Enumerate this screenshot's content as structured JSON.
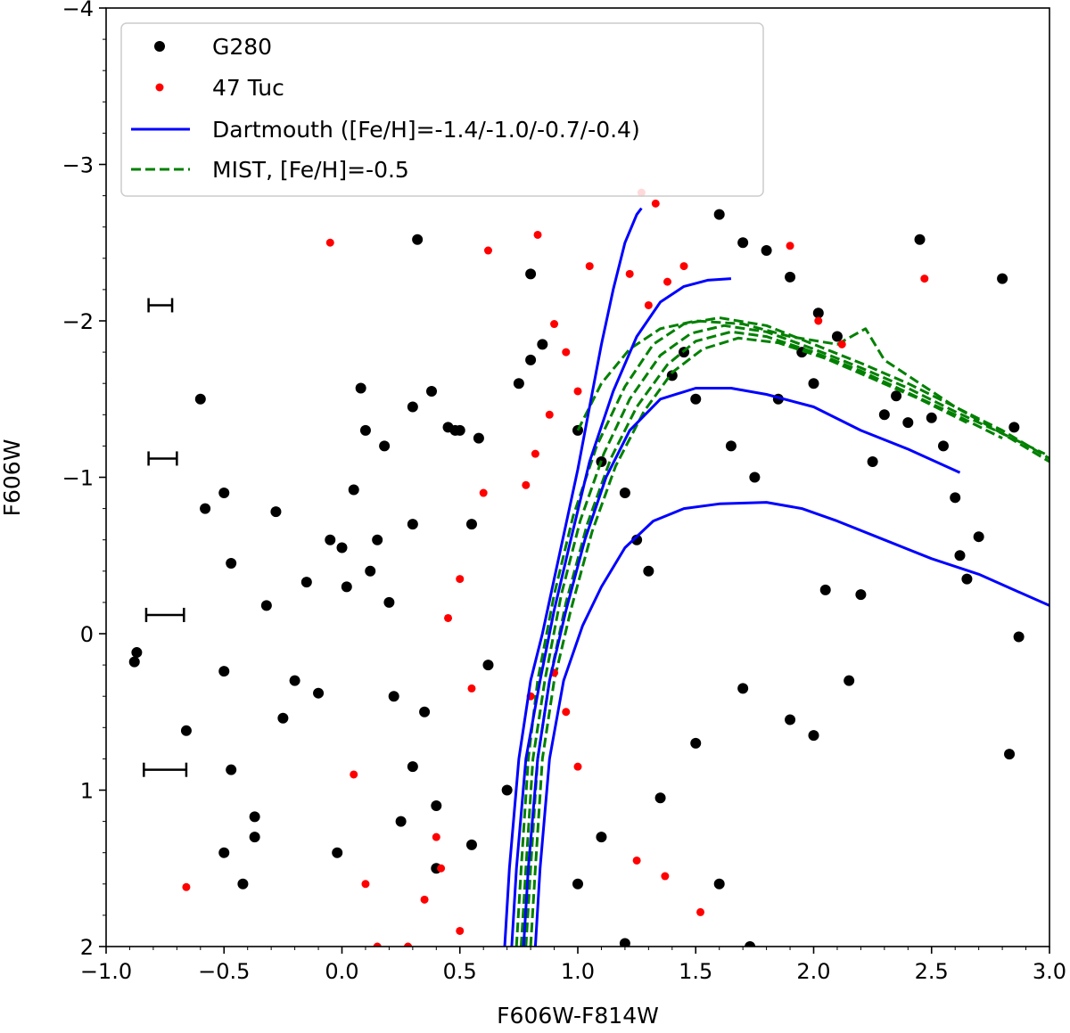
{
  "chart_data": {
    "type": "scatter",
    "xlabel": "F606W-F814W",
    "ylabel": "F606W",
    "xlim": [
      -1.0,
      3.0
    ],
    "ylim": [
      2,
      -4
    ],
    "y_inverted": true,
    "x_ticks": [
      -1.0,
      -0.5,
      0.0,
      0.5,
      1.0,
      1.5,
      2.0,
      2.5,
      3.0
    ],
    "x_tick_labels": [
      "−1.0",
      "−0.5",
      "0.0",
      "0.5",
      "1.0",
      "1.5",
      "2.0",
      "2.5",
      "3.0"
    ],
    "y_ticks": [
      -4,
      -3,
      -2,
      -1,
      0,
      1,
      2
    ],
    "y_tick_labels": [
      "−4",
      "−3",
      "−2",
      "−1",
      "0",
      "1",
      "2"
    ],
    "legend": {
      "position": "upper-left",
      "entries": [
        {
          "label": "G280",
          "kind": "marker",
          "color": "#000000"
        },
        {
          "label": "47 Tuc",
          "kind": "marker",
          "color": "#ff0000"
        },
        {
          "label": "Dartmouth ([Fe/H]=-1.4/-1.0/-0.7/-0.4)",
          "kind": "line",
          "color": "#0000ff"
        },
        {
          "label": "MIST, [Fe/H]=-0.5",
          "kind": "dashed",
          "color": "#008000"
        }
      ]
    },
    "error_bars": [
      {
        "x": -0.77,
        "y": -2.1,
        "xerr": 0.05
      },
      {
        "x": -0.76,
        "y": -1.12,
        "xerr": 0.06
      },
      {
        "x": -0.75,
        "y": -0.12,
        "xerr": 0.08
      },
      {
        "x": -0.75,
        "y": 0.87,
        "xerr": 0.09
      }
    ],
    "series": [
      {
        "name": "G280",
        "color": "#000000",
        "style": "points",
        "points": [
          [
            -0.88,
            0.18
          ],
          [
            -0.87,
            0.12
          ],
          [
            -0.66,
            0.62
          ],
          [
            -0.6,
            -1.5
          ],
          [
            -0.58,
            -0.8
          ],
          [
            -0.5,
            -0.9
          ],
          [
            -0.5,
            0.24
          ],
          [
            -0.5,
            1.4
          ],
          [
            -0.47,
            -0.45
          ],
          [
            -0.47,
            0.87
          ],
          [
            -0.42,
            1.6
          ],
          [
            -0.37,
            1.17
          ],
          [
            -0.37,
            1.3
          ],
          [
            -0.32,
            -0.18
          ],
          [
            -0.28,
            -0.78
          ],
          [
            -0.25,
            0.54
          ],
          [
            -0.2,
            0.3
          ],
          [
            -0.15,
            -0.33
          ],
          [
            -0.1,
            0.38
          ],
          [
            -0.05,
            -0.6
          ],
          [
            -0.02,
            1.4
          ],
          [
            0.0,
            -0.55
          ],
          [
            0.02,
            -0.3
          ],
          [
            0.05,
            -0.92
          ],
          [
            0.08,
            -1.57
          ],
          [
            0.1,
            -1.3
          ],
          [
            0.12,
            -0.4
          ],
          [
            0.15,
            -0.6
          ],
          [
            0.18,
            -1.2
          ],
          [
            0.2,
            -0.2
          ],
          [
            0.22,
            0.4
          ],
          [
            0.25,
            1.2
          ],
          [
            0.3,
            -1.45
          ],
          [
            0.3,
            -0.7
          ],
          [
            0.32,
            -2.52
          ],
          [
            0.35,
            0.5
          ],
          [
            0.38,
            -1.55
          ],
          [
            0.4,
            1.5
          ],
          [
            0.45,
            -1.32
          ],
          [
            0.48,
            -1.3
          ],
          [
            0.5,
            -1.3
          ],
          [
            0.55,
            -0.7
          ],
          [
            0.58,
            -1.25
          ],
          [
            0.62,
            0.2
          ],
          [
            0.75,
            -1.6
          ],
          [
            0.8,
            -1.75
          ],
          [
            0.8,
            -2.3
          ],
          [
            0.85,
            -1.85
          ],
          [
            1.0,
            -1.3
          ],
          [
            1.1,
            -1.1
          ],
          [
            1.2,
            -0.9
          ],
          [
            1.25,
            -0.6
          ],
          [
            1.3,
            -0.4
          ],
          [
            1.4,
            -1.65
          ],
          [
            1.45,
            -1.8
          ],
          [
            1.5,
            -1.5
          ],
          [
            1.6,
            -2.68
          ],
          [
            1.65,
            -1.2
          ],
          [
            1.7,
            -2.5
          ],
          [
            1.75,
            -1.0
          ],
          [
            1.8,
            -2.45
          ],
          [
            1.85,
            -1.5
          ],
          [
            1.9,
            -2.28
          ],
          [
            1.95,
            -1.8
          ],
          [
            2.0,
            -1.6
          ],
          [
            2.02,
            -2.05
          ],
          [
            2.1,
            -1.9
          ],
          [
            2.05,
            -0.28
          ],
          [
            2.15,
            0.3
          ],
          [
            2.2,
            -0.25
          ],
          [
            2.25,
            -1.1
          ],
          [
            2.3,
            -1.4
          ],
          [
            2.35,
            -1.52
          ],
          [
            2.4,
            -1.35
          ],
          [
            2.45,
            -2.52
          ],
          [
            2.5,
            -1.38
          ],
          [
            2.55,
            -1.2
          ],
          [
            2.6,
            -0.87
          ],
          [
            2.62,
            -0.5
          ],
          [
            2.65,
            -0.35
          ],
          [
            2.7,
            -0.62
          ],
          [
            2.8,
            -2.27
          ],
          [
            2.85,
            -1.32
          ],
          [
            2.87,
            0.02
          ],
          [
            2.83,
            0.77
          ],
          [
            1.2,
            1.98
          ],
          [
            1.73,
            2.0
          ],
          [
            0.55,
            1.35
          ],
          [
            1.0,
            1.6
          ],
          [
            0.4,
            1.1
          ],
          [
            1.35,
            1.05
          ],
          [
            1.6,
            1.6
          ],
          [
            0.3,
            0.85
          ],
          [
            0.7,
            1.0
          ],
          [
            1.1,
            1.3
          ],
          [
            1.5,
            0.7
          ],
          [
            1.9,
            0.55
          ],
          [
            2.0,
            0.65
          ],
          [
            1.7,
            0.35
          ]
        ]
      },
      {
        "name": "47 Tuc",
        "color": "#ff0000",
        "style": "points",
        "points": [
          [
            -0.05,
            -2.5
          ],
          [
            -0.66,
            1.62
          ],
          [
            0.62,
            -2.45
          ],
          [
            0.83,
            -2.55
          ],
          [
            1.05,
            -2.35
          ],
          [
            1.27,
            -2.82
          ],
          [
            1.33,
            -2.75
          ],
          [
            1.22,
            -2.3
          ],
          [
            1.3,
            -2.1
          ],
          [
            1.38,
            -2.25
          ],
          [
            1.45,
            -2.35
          ],
          [
            1.9,
            -2.48
          ],
          [
            2.47,
            -2.27
          ],
          [
            2.02,
            -2.0
          ],
          [
            2.12,
            -1.85
          ],
          [
            0.9,
            -1.98
          ],
          [
            0.95,
            -1.8
          ],
          [
            1.0,
            -1.55
          ],
          [
            0.88,
            -1.4
          ],
          [
            0.82,
            -1.15
          ],
          [
            0.78,
            -0.95
          ],
          [
            0.6,
            -0.9
          ],
          [
            0.5,
            -0.35
          ],
          [
            0.45,
            -0.1
          ],
          [
            0.55,
            0.35
          ],
          [
            0.4,
            1.3
          ],
          [
            0.35,
            1.7
          ],
          [
            0.28,
            2.0
          ],
          [
            0.5,
            1.9
          ],
          [
            0.1,
            1.6
          ],
          [
            0.05,
            0.9
          ],
          [
            0.15,
            2.0
          ],
          [
            0.42,
            1.5
          ],
          [
            1.25,
            1.45
          ],
          [
            1.37,
            1.55
          ],
          [
            1.52,
            1.78
          ],
          [
            1.0,
            0.85
          ],
          [
            0.95,
            0.5
          ],
          [
            0.8,
            0.4
          ],
          [
            0.9,
            0.25
          ]
        ]
      },
      {
        "name": "Dartmouth [Fe/H]=-1.4",
        "color": "#0000ff",
        "style": "line",
        "points": [
          [
            0.69,
            2.0
          ],
          [
            0.71,
            1.5
          ],
          [
            0.75,
            0.8
          ],
          [
            0.8,
            0.3
          ],
          [
            0.85,
            0.0
          ],
          [
            0.9,
            -0.35
          ],
          [
            0.95,
            -0.7
          ],
          [
            1.0,
            -1.05
          ],
          [
            1.05,
            -1.45
          ],
          [
            1.1,
            -1.85
          ],
          [
            1.15,
            -2.2
          ],
          [
            1.2,
            -2.5
          ],
          [
            1.25,
            -2.68
          ],
          [
            1.27,
            -2.72
          ]
        ]
      },
      {
        "name": "Dartmouth [Fe/H]=-1.0",
        "color": "#0000ff",
        "style": "line",
        "points": [
          [
            0.72,
            2.0
          ],
          [
            0.74,
            1.5
          ],
          [
            0.78,
            0.8
          ],
          [
            0.84,
            0.3
          ],
          [
            0.9,
            -0.15
          ],
          [
            0.97,
            -0.6
          ],
          [
            1.05,
            -1.1
          ],
          [
            1.15,
            -1.55
          ],
          [
            1.25,
            -1.9
          ],
          [
            1.35,
            -2.12
          ],
          [
            1.45,
            -2.22
          ],
          [
            1.55,
            -2.26
          ],
          [
            1.65,
            -2.27
          ]
        ]
      },
      {
        "name": "Dartmouth [Fe/H]=-0.7",
        "color": "#0000ff",
        "style": "line",
        "points": [
          [
            0.77,
            2.0
          ],
          [
            0.79,
            1.5
          ],
          [
            0.83,
            0.8
          ],
          [
            0.88,
            0.3
          ],
          [
            0.95,
            -0.15
          ],
          [
            1.03,
            -0.6
          ],
          [
            1.12,
            -1.0
          ],
          [
            1.22,
            -1.3
          ],
          [
            1.35,
            -1.5
          ],
          [
            1.5,
            -1.57
          ],
          [
            1.65,
            -1.57
          ],
          [
            1.8,
            -1.53
          ],
          [
            2.0,
            -1.45
          ],
          [
            2.2,
            -1.3
          ],
          [
            2.4,
            -1.18
          ],
          [
            2.62,
            -1.03
          ]
        ]
      },
      {
        "name": "Dartmouth [Fe/H]=-0.4",
        "color": "#0000ff",
        "style": "line",
        "points": [
          [
            0.82,
            2.0
          ],
          [
            0.84,
            1.5
          ],
          [
            0.88,
            0.8
          ],
          [
            0.94,
            0.3
          ],
          [
            1.02,
            -0.05
          ],
          [
            1.1,
            -0.3
          ],
          [
            1.2,
            -0.55
          ],
          [
            1.32,
            -0.72
          ],
          [
            1.45,
            -0.8
          ],
          [
            1.6,
            -0.83
          ],
          [
            1.8,
            -0.84
          ],
          [
            1.95,
            -0.8
          ],
          [
            2.1,
            -0.72
          ],
          [
            2.3,
            -0.6
          ],
          [
            2.5,
            -0.48
          ],
          [
            2.7,
            -0.38
          ],
          [
            2.85,
            -0.28
          ],
          [
            3.0,
            -0.18
          ]
        ]
      },
      {
        "name": "MIST 1",
        "color": "#008000",
        "style": "dashed",
        "points": [
          [
            0.74,
            2.0
          ],
          [
            0.76,
            1.5
          ],
          [
            0.79,
            0.8
          ],
          [
            0.83,
            0.3
          ],
          [
            0.9,
            -0.25
          ],
          [
            0.98,
            -0.75
          ],
          [
            1.08,
            -1.2
          ],
          [
            1.2,
            -1.58
          ],
          [
            1.32,
            -1.85
          ],
          [
            1.45,
            -1.98
          ],
          [
            1.6,
            -2.02
          ],
          [
            1.8,
            -1.97
          ],
          [
            2.0,
            -1.85
          ],
          [
            2.2,
            -1.73
          ],
          [
            2.4,
            -1.6
          ],
          [
            2.6,
            -1.45
          ],
          [
            2.8,
            -1.28
          ],
          [
            3.0,
            -1.1
          ]
        ]
      },
      {
        "name": "MIST 2",
        "color": "#008000",
        "style": "dashed",
        "points": [
          [
            0.76,
            2.0
          ],
          [
            0.78,
            1.5
          ],
          [
            0.81,
            0.8
          ],
          [
            0.86,
            0.3
          ],
          [
            0.93,
            -0.25
          ],
          [
            1.01,
            -0.72
          ],
          [
            1.11,
            -1.15
          ],
          [
            1.22,
            -1.5
          ],
          [
            1.35,
            -1.78
          ],
          [
            1.48,
            -1.92
          ],
          [
            1.62,
            -1.97
          ],
          [
            1.8,
            -1.93
          ],
          [
            2.0,
            -1.82
          ],
          [
            2.2,
            -1.7
          ],
          [
            2.4,
            -1.57
          ],
          [
            2.6,
            -1.42
          ],
          [
            2.8,
            -1.28
          ],
          [
            2.98,
            -1.15
          ]
        ]
      },
      {
        "name": "MIST 3",
        "color": "#008000",
        "style": "dashed",
        "points": [
          [
            0.78,
            2.0
          ],
          [
            0.8,
            1.5
          ],
          [
            0.83,
            0.8
          ],
          [
            0.88,
            0.3
          ],
          [
            0.95,
            -0.2
          ],
          [
            1.04,
            -0.7
          ],
          [
            1.14,
            -1.12
          ],
          [
            1.25,
            -1.45
          ],
          [
            1.38,
            -1.72
          ],
          [
            1.5,
            -1.87
          ],
          [
            1.65,
            -1.93
          ],
          [
            1.8,
            -1.9
          ],
          [
            2.0,
            -1.8
          ],
          [
            2.2,
            -1.68
          ],
          [
            2.4,
            -1.54
          ],
          [
            2.6,
            -1.4
          ],
          [
            2.8,
            -1.25
          ]
        ]
      },
      {
        "name": "MIST 4",
        "color": "#008000",
        "style": "dashed",
        "points": [
          [
            0.8,
            2.0
          ],
          [
            0.82,
            1.5
          ],
          [
            0.85,
            0.8
          ],
          [
            0.9,
            0.3
          ],
          [
            0.97,
            -0.15
          ],
          [
            1.06,
            -0.65
          ],
          [
            1.16,
            -1.07
          ],
          [
            1.28,
            -1.42
          ],
          [
            1.4,
            -1.67
          ],
          [
            1.53,
            -1.82
          ],
          [
            1.68,
            -1.89
          ],
          [
            1.85,
            -1.86
          ],
          [
            2.05,
            -1.76
          ],
          [
            2.25,
            -1.63
          ],
          [
            2.45,
            -1.5
          ],
          [
            2.65,
            -1.35
          ]
        ]
      },
      {
        "name": "MIST 5",
        "color": "#008000",
        "style": "dashed",
        "points": [
          [
            1.0,
            -1.3
          ],
          [
            1.1,
            -1.6
          ],
          [
            1.22,
            -1.82
          ],
          [
            1.35,
            -1.95
          ],
          [
            1.5,
            -2.0
          ],
          [
            1.7,
            -1.98
          ],
          [
            1.9,
            -1.9
          ],
          [
            2.1,
            -1.85
          ],
          [
            2.22,
            -1.95
          ],
          [
            2.3,
            -1.75
          ],
          [
            2.45,
            -1.6
          ],
          [
            2.6,
            -1.45
          ],
          [
            2.8,
            -1.3
          ],
          [
            3.0,
            -1.12
          ]
        ]
      }
    ]
  }
}
